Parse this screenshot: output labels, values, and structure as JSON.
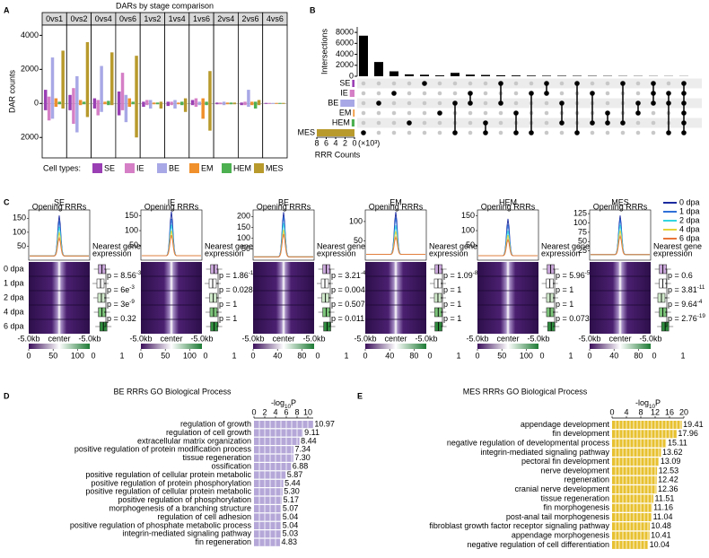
{
  "panels": [
    "A",
    "B",
    "C",
    "D",
    "E"
  ],
  "chart_data": [
    {
      "type": "bar",
      "title": "DARs by stage comparison",
      "y_label": "DAR counts",
      "facets": [
        "0vs1",
        "0vs2",
        "0vs4",
        "0vs6",
        "1vs2",
        "1vs4",
        "1vs6",
        "2vs4",
        "2vs6",
        "4vs6"
      ],
      "ylim": [
        -3200,
        4600
      ],
      "yticks": [
        4000,
        2000,
        0,
        {
          "value": -2000,
          "label": "2000"
        }
      ],
      "legend_title": "Cell types:",
      "series": [
        {
          "name": "SE",
          "color": "#9b3fb5",
          "values": [
            800,
            500,
            300,
            700,
            100,
            100,
            200,
            50,
            50,
            30
          ],
          "down_values": [
            -400,
            -400,
            -300,
            -700,
            -200,
            -150,
            -100,
            -50,
            -100,
            -30
          ]
        },
        {
          "name": "IE",
          "color": "#d47fc6",
          "values": [
            400,
            900,
            200,
            1800,
            200,
            100,
            300,
            50,
            100,
            30
          ],
          "down_values": [
            -1000,
            -1200,
            -700,
            -400,
            -100,
            -100,
            -200,
            -50,
            -100,
            -30
          ]
        },
        {
          "name": "BE",
          "color": "#a8a8e6",
          "values": [
            2700,
            1600,
            2200,
            500,
            200,
            200,
            100,
            100,
            800,
            30
          ],
          "down_values": [
            -900,
            -1700,
            -500,
            -1100,
            -300,
            -300,
            -100,
            -100,
            -200,
            -30
          ]
        },
        {
          "name": "EM",
          "color": "#f0902c",
          "values": [
            300,
            200,
            100,
            300,
            50,
            50,
            300,
            50,
            100,
            30
          ],
          "down_values": [
            -200,
            -100,
            -50,
            -200,
            -50,
            -50,
            -900,
            -50,
            -100,
            -30
          ]
        },
        {
          "name": "HEM",
          "color": "#4caf50",
          "values": [
            100,
            100,
            150,
            100,
            50,
            100,
            100,
            50,
            100,
            30
          ],
          "down_values": [
            -50,
            -50,
            -100,
            -50,
            -50,
            -100,
            -100,
            -50,
            -300,
            -30
          ]
        },
        {
          "name": "MES",
          "color": "#b89a2c",
          "values": [
            3100,
            3600,
            3000,
            2800,
            100,
            300,
            1900,
            50,
            200,
            30
          ],
          "down_values": [
            -300,
            -800,
            -100,
            -2000,
            -300,
            -500,
            -1600,
            -50,
            -100,
            -30
          ]
        }
      ]
    },
    {
      "type": "upset",
      "y_label": "Intersections",
      "ylim": [
        0,
        9000
      ],
      "yticks": [
        0,
        2000,
        4000,
        6000,
        8000
      ],
      "values": [
        7400,
        2600,
        900,
        350,
        280,
        160,
        620,
        300,
        240,
        180,
        150,
        120,
        100,
        90,
        80,
        70,
        60,
        50,
        45,
        40,
        35,
        30
      ],
      "members": [
        [
          5
        ],
        [
          2
        ],
        [
          1
        ],
        [
          4
        ],
        [
          0
        ],
        [
          3
        ],
        [
          2,
          5
        ],
        [
          1,
          2
        ],
        [
          4,
          5
        ],
        [
          0,
          2
        ],
        [
          3,
          5
        ],
        [
          1,
          5
        ],
        [
          0,
          1
        ],
        [
          2,
          4
        ],
        [
          0,
          5
        ],
        [
          1,
          4
        ],
        [
          3,
          4
        ],
        [
          0,
          4
        ],
        [
          2,
          3
        ],
        [
          0,
          1,
          2
        ],
        [
          1,
          2,
          5
        ],
        [
          0,
          1,
          2,
          3,
          4,
          5
        ]
      ],
      "sets": [
        {
          "name": "SE",
          "color": "#9b3fb5",
          "size": 500
        },
        {
          "name": "IE",
          "color": "#d47fc6",
          "size": 1000
        },
        {
          "name": "BE",
          "color": "#a8a8e6",
          "size": 3000
        },
        {
          "name": "EM",
          "color": "#f0902c",
          "size": 300
        },
        {
          "name": "HEM",
          "color": "#4caf50",
          "size": 600
        },
        {
          "name": "MES",
          "color": "#b89a2c",
          "size": 8000
        }
      ],
      "x_label": "RRR Counts",
      "x_unit": "(×10³)",
      "xlim": [
        8000,
        0
      ],
      "xticks": [
        {
          "value": 8000,
          "label": "8"
        },
        {
          "value": 6000,
          "label": "6"
        },
        {
          "value": 4000,
          "label": "4"
        },
        {
          "value": 2000,
          "label": "2"
        },
        0
      ]
    },
    {
      "type": "profile_heatmap",
      "legend": [
        {
          "name": "0 dpa",
          "color": "#1b2a9e"
        },
        {
          "name": "1 dpa",
          "color": "#2f6fd8"
        },
        {
          "name": "2 dpa",
          "color": "#33d6e0"
        },
        {
          "name": "4 dpa",
          "color": "#e3d43a"
        },
        {
          "name": "6 dpa",
          "color": "#e8743a"
        }
      ],
      "rows": [
        "0 dpa",
        "1 dpa",
        "2 dpa",
        "4 dpa",
        "6 dpa"
      ],
      "profile_label": "Opening RRRs",
      "expression_label": [
        "Nearest gene",
        "expression"
      ],
      "heat_xticks": [
        "-5.0kb",
        "center",
        "-5.0kb"
      ],
      "expr_xlim": [
        0,
        1
      ],
      "expr_xticks": [
        0,
        1
      ],
      "box_colors": [
        "#c9a6d9",
        "#ffffff",
        "#cfe8c9",
        "#7cc47a",
        "#2e8b3e"
      ],
      "panels": [
        {
          "name": "SE",
          "ylim": [
            0,
            180
          ],
          "yticks": [
            50,
            100,
            150
          ],
          "peaks": [
            160,
            140,
            120,
            100,
            80
          ],
          "baseline": 15,
          "cbar_lim": [
            0,
            125
          ],
          "cbar_ticks": [
            0,
            50,
            100
          ],
          "box_medians": [
            0.3,
            0.25,
            0.28,
            0.3,
            0.35
          ],
          "pvalues": [
            {
              "text": "p = 8.56",
              "exp": "-37"
            },
            {
              "text": "p = 6e",
              "exp": "-3"
            },
            {
              "text": "p = 3e",
              "exp": "-9"
            },
            {
              "text": "p = 0.32"
            }
          ]
        },
        {
          "name": "IE",
          "ylim": [
            0,
            170
          ],
          "yticks": [
            50,
            100,
            150
          ],
          "peaks": [
            165,
            140,
            120,
            100,
            85
          ],
          "baseline": 15,
          "cbar_lim": [
            0,
            125
          ],
          "cbar_ticks": [
            0,
            50,
            100
          ],
          "box_medians": [
            0.3,
            0.25,
            0.27,
            0.28,
            0.3
          ],
          "pvalues": [
            {
              "text": "p = 1.86",
              "exp": "-13"
            },
            {
              "text": "p = 0.028"
            },
            {
              "text": "p = 1"
            },
            {
              "text": "p = 1"
            }
          ]
        },
        {
          "name": "BE",
          "ylim": [
            0,
            230
          ],
          "yticks": [
            50,
            100,
            150,
            200
          ],
          "peaks": [
            220,
            200,
            170,
            140,
            120
          ],
          "baseline": 15,
          "cbar_lim": [
            0,
            100
          ],
          "cbar_ticks": [
            0,
            40,
            80
          ],
          "box_medians": [
            0.3,
            0.25,
            0.27,
            0.3,
            0.33
          ],
          "pvalues": [
            {
              "text": "p = 3.21",
              "exp": "-48"
            },
            {
              "text": "p = 0.004"
            },
            {
              "text": "p = 0.507"
            },
            {
              "text": "p = 0.011"
            }
          ]
        },
        {
          "name": "EM",
          "ylim": [
            0,
            130
          ],
          "yticks": [
            50,
            100
          ],
          "peaks": [
            125,
            110,
            90,
            75,
            60
          ],
          "baseline": 15,
          "cbar_lim": [
            0,
            100
          ],
          "cbar_ticks": [
            0,
            40,
            80
          ],
          "box_medians": [
            0.3,
            0.28,
            0.28,
            0.29,
            0.3
          ],
          "pvalues": [
            {
              "text": "p = 1.09",
              "exp": "-8"
            },
            {
              "text": "p = 1"
            },
            {
              "text": "p = 1"
            },
            {
              "text": "p = 1"
            }
          ]
        },
        {
          "name": "HEM",
          "ylim": [
            0,
            170
          ],
          "yticks": [
            50,
            100,
            150
          ],
          "peaks": [
            140,
            120,
            100,
            85,
            70
          ],
          "baseline": 15,
          "cbar_lim": [
            0,
            125
          ],
          "cbar_ticks": [
            0,
            50,
            100
          ],
          "box_medians": [
            0.3,
            0.27,
            0.28,
            0.28,
            0.32
          ],
          "pvalues": [
            {
              "text": "p = 5.96",
              "exp": "-5"
            },
            {
              "text": "p = 1"
            },
            {
              "text": "p = 1"
            },
            {
              "text": "p = 0.073"
            }
          ]
        },
        {
          "name": "MES",
          "ylim": [
            0,
            135
          ],
          "yticks": [
            25,
            50,
            75,
            100,
            125
          ],
          "peaks": [
            120,
            110,
            95,
            80,
            65
          ],
          "baseline": 15,
          "cbar_lim": [
            0,
            100
          ],
          "cbar_ticks": [
            0,
            40,
            80
          ],
          "box_medians": [
            0.3,
            0.3,
            0.25,
            0.3,
            0.38
          ],
          "pvalues": [
            {
              "text": "p = 0.6"
            },
            {
              "text": "p = 3.81",
              "exp": "-11"
            },
            {
              "text": "p = 9.64",
              "exp": "-4"
            },
            {
              "text": "p = 2.76",
              "exp": "-19"
            }
          ]
        }
      ]
    },
    {
      "type": "barh",
      "title": "BE RRRs GO Biological Process",
      "x_label": "-log",
      "x_label_sub": "10",
      "x_label_end": "P",
      "categories": [
        "regulation of growth",
        "regulation of cell growth",
        "extracellular matrix organization",
        "positive regulation of protein modification process",
        "tissue regeneration",
        "ossification",
        "positive regulation of cellular protein metabolic",
        "positive regulation of protein phosphorylation",
        "positive regulation of cellular protein metabolic",
        "positive regulation of phosphorylation",
        "morphogenesis of a branching structure",
        "regulation of cell adhesion",
        "positive regulation of phosphate metabolic process",
        "integrin-mediated signaling pathway",
        "fin regeneration"
      ],
      "values": [
        10.97,
        9.11,
        8.44,
        7.34,
        7.3,
        6.88,
        5.87,
        5.44,
        5.3,
        5.17,
        5.07,
        5.04,
        5.04,
        5.03,
        4.83
      ],
      "value_labels": [
        "10.97",
        "9.11",
        "8.44",
        "7.34",
        "7.30",
        "6.88",
        "5.87",
        "5.44",
        "5.30",
        "5.17",
        "5.07",
        "5.04",
        "5.04",
        "5.03",
        "4.83"
      ],
      "color": "#b5a8d8",
      "xlim": [
        0,
        11
      ],
      "xticks": [
        0,
        2,
        4,
        6,
        8,
        10
      ]
    },
    {
      "type": "barh",
      "title": "MES RRRs GO Biological Process",
      "x_label": "-log",
      "x_label_sub": "10",
      "x_label_end": "P",
      "categories": [
        "appendage development",
        "fin development",
        "negative regulation of developmental process",
        "integrin-mediated signaling pathway",
        "pectoral fin development",
        "nerve development",
        "regeneration",
        "cranial nerve development",
        "tissue regeneration",
        "fin morphogenesis",
        "post-anal tail morphogenesis",
        "fibroblast growth factor receptor signaling pathway",
        "appendage morphogenesis",
        "negative regulation of cell differentiation"
      ],
      "values": [
        19.41,
        17.96,
        15.11,
        13.62,
        13.09,
        12.53,
        12.42,
        12.36,
        11.51,
        11.16,
        11.04,
        10.48,
        10.41,
        10.04
      ],
      "value_labels": [
        "19.41",
        "17.96",
        "15.11",
        "13.62",
        "13.09",
        "12.53",
        "12.42",
        "12.36",
        "11.51",
        "11.16",
        "11.04",
        "10.48",
        "10.41",
        "10.04"
      ],
      "color": "#e8c130",
      "xlim": [
        0,
        20
      ],
      "xticks": [
        0,
        4,
        8,
        12,
        16,
        20
      ]
    }
  ]
}
